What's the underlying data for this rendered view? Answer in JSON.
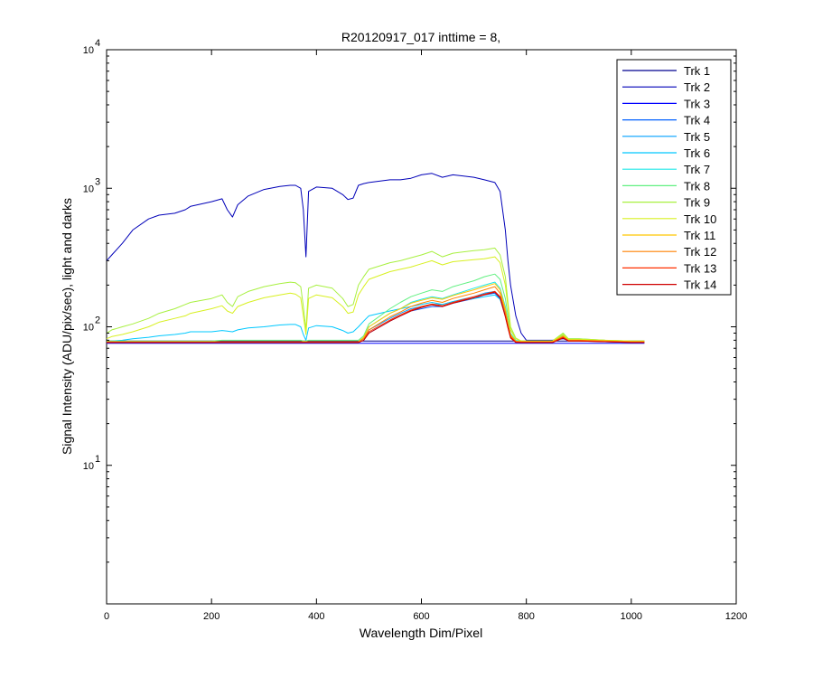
{
  "chart_data": {
    "type": "line",
    "title": "R20120917_017 inttime = 8,",
    "xlabel": "Wavelength Dim/Pixel",
    "ylabel": "Signal Intensity (ADU/pix/sec), light and darks",
    "xlim": [
      0,
      1200
    ],
    "ylim": [
      1,
      10000
    ],
    "yscale": "log",
    "grid": false,
    "legend_position": "top-right",
    "x_ticks": [
      "0",
      "200",
      "400",
      "600",
      "800",
      "1000",
      "1200"
    ],
    "y_ticks": [
      {
        "base": "10",
        "exp": "1"
      },
      {
        "base": "10",
        "exp": "2"
      },
      {
        "base": "10",
        "exp": "3"
      },
      {
        "base": "10",
        "exp": "4"
      }
    ],
    "x": [
      0,
      10,
      30,
      50,
      80,
      100,
      130,
      150,
      160,
      200,
      220,
      230,
      240,
      250,
      270,
      300,
      330,
      350,
      360,
      370,
      375,
      380,
      385,
      400,
      430,
      450,
      460,
      470,
      480,
      490,
      500,
      540,
      560,
      580,
      600,
      620,
      640,
      660,
      700,
      720,
      740,
      750,
      760,
      765,
      770,
      780,
      790,
      800,
      850,
      870,
      880,
      900,
      950,
      1000,
      1025
    ],
    "series": [
      {
        "name": "Trk 1",
        "color": "#00008f",
        "values": [
          79,
          79,
          79,
          79,
          79,
          79,
          79,
          79,
          79,
          79,
          79,
          79,
          79,
          79,
          79,
          79,
          79,
          79,
          79,
          79,
          79,
          79,
          79,
          79,
          79,
          79,
          79,
          79,
          79,
          79,
          79,
          79,
          79,
          79,
          79,
          79,
          79,
          79,
          79,
          79,
          79,
          79,
          79,
          79,
          79,
          79,
          79,
          79,
          79,
          79,
          79,
          79,
          79,
          79,
          79
        ]
      },
      {
        "name": "Trk 2",
        "color": "#0000b8",
        "values": [
          300,
          330,
          400,
          500,
          600,
          640,
          660,
          700,
          740,
          800,
          840,
          700,
          620,
          760,
          880,
          980,
          1030,
          1050,
          1050,
          1000,
          700,
          320,
          950,
          1020,
          1000,
          900,
          830,
          850,
          1050,
          1080,
          1100,
          1150,
          1150,
          1180,
          1250,
          1280,
          1200,
          1250,
          1200,
          1150,
          1100,
          950,
          500,
          300,
          200,
          120,
          90,
          80,
          80,
          82,
          80,
          80,
          79,
          79,
          79
        ]
      },
      {
        "name": "Trk 3",
        "color": "#0000ff",
        "values": [
          76,
          76,
          76,
          76,
          76,
          76,
          76,
          76,
          76,
          76,
          76,
          76,
          76,
          76,
          76,
          76,
          76,
          76,
          76,
          76,
          76,
          76,
          76,
          76,
          76,
          76,
          76,
          76,
          76,
          76,
          76,
          76,
          76,
          76,
          76,
          76,
          76,
          76,
          76,
          76,
          76,
          76,
          76,
          76,
          76,
          76,
          76,
          76,
          76,
          76,
          76,
          76,
          76,
          76,
          76
        ]
      },
      {
        "name": "Trk 4",
        "color": "#0060ff",
        "values": [
          77,
          77,
          77,
          77,
          77,
          77,
          77,
          77,
          77,
          77,
          77,
          77,
          77,
          77,
          77,
          77,
          77,
          77,
          77,
          77,
          77,
          77,
          77,
          77,
          77,
          77,
          77,
          77,
          77,
          80,
          90,
          110,
          120,
          130,
          135,
          140,
          140,
          148,
          160,
          170,
          175,
          160,
          120,
          100,
          85,
          78,
          77,
          77,
          77,
          85,
          80,
          80,
          78,
          77,
          77
        ]
      },
      {
        "name": "Trk 5",
        "color": "#00a0ff",
        "values": [
          78,
          78,
          78,
          78,
          78,
          78,
          78,
          78,
          78,
          78,
          78,
          78,
          78,
          78,
          78,
          78,
          78,
          78,
          78,
          78,
          78,
          78,
          78,
          78,
          78,
          78,
          78,
          78,
          78,
          82,
          95,
          115,
          125,
          135,
          140,
          145,
          145,
          152,
          165,
          175,
          180,
          165,
          125,
          103,
          87,
          79,
          78,
          78,
          78,
          87,
          81,
          81,
          79,
          78,
          78
        ]
      },
      {
        "name": "Trk 6",
        "color": "#00c8ff",
        "values": [
          78,
          79,
          80,
          82,
          84,
          86,
          88,
          90,
          92,
          92,
          94,
          93,
          92,
          95,
          98,
          100,
          103,
          104,
          104,
          100,
          88,
          80,
          98,
          102,
          100,
          94,
          90,
          92,
          100,
          110,
          120,
          130,
          135,
          140,
          145,
          150,
          145,
          152,
          160,
          165,
          170,
          158,
          120,
          100,
          86,
          79,
          78,
          78,
          78,
          86,
          80,
          80,
          79,
          78,
          78
        ]
      },
      {
        "name": "Trk 7",
        "color": "#20e8e8",
        "values": [
          78,
          78,
          78,
          78,
          78,
          78,
          78,
          78,
          78,
          78,
          78,
          78,
          78,
          78,
          78,
          78,
          78,
          78,
          78,
          78,
          78,
          78,
          78,
          78,
          78,
          78,
          78,
          78,
          78,
          84,
          100,
          125,
          135,
          150,
          158,
          165,
          160,
          170,
          190,
          200,
          210,
          190,
          140,
          110,
          90,
          80,
          78,
          78,
          78,
          88,
          81,
          81,
          79,
          78,
          78
        ]
      },
      {
        "name": "Trk 8",
        "color": "#60f080",
        "values": [
          79,
          79,
          79,
          79,
          79,
          79,
          79,
          79,
          79,
          79,
          80,
          80,
          80,
          80,
          80,
          80,
          80,
          80,
          80,
          80,
          79,
          79,
          80,
          80,
          80,
          80,
          80,
          80,
          80,
          86,
          105,
          135,
          150,
          165,
          175,
          185,
          180,
          195,
          215,
          230,
          240,
          220,
          160,
          120,
          95,
          82,
          79,
          79,
          79,
          90,
          82,
          82,
          80,
          79,
          79
        ]
      },
      {
        "name": "Trk 9",
        "color": "#a8f040",
        "values": [
          90,
          95,
          100,
          105,
          115,
          125,
          135,
          145,
          150,
          160,
          170,
          150,
          140,
          165,
          180,
          195,
          205,
          210,
          208,
          195,
          140,
          95,
          190,
          200,
          190,
          160,
          140,
          145,
          200,
          230,
          260,
          290,
          300,
          315,
          330,
          350,
          320,
          340,
          355,
          360,
          370,
          330,
          230,
          150,
          100,
          83,
          79,
          79,
          79,
          90,
          82,
          82,
          80,
          79,
          79
        ]
      },
      {
        "name": "Trk 10",
        "color": "#d8f020",
        "values": [
          82,
          85,
          88,
          92,
          100,
          108,
          115,
          120,
          125,
          135,
          142,
          130,
          125,
          140,
          150,
          162,
          170,
          175,
          172,
          162,
          120,
          88,
          160,
          170,
          162,
          140,
          125,
          128,
          170,
          195,
          220,
          250,
          260,
          270,
          285,
          300,
          280,
          295,
          305,
          310,
          320,
          290,
          200,
          140,
          95,
          82,
          79,
          79,
          79,
          88,
          81,
          81,
          80,
          79,
          79
        ]
      },
      {
        "name": "Trk 11",
        "color": "#ffc800",
        "values": [
          78,
          78,
          78,
          78,
          78,
          78,
          78,
          78,
          78,
          78,
          78,
          78,
          78,
          78,
          78,
          78,
          78,
          78,
          78,
          78,
          78,
          78,
          78,
          78,
          78,
          78,
          78,
          78,
          78,
          84,
          100,
          125,
          135,
          148,
          155,
          162,
          158,
          168,
          185,
          195,
          205,
          185,
          135,
          108,
          88,
          79,
          78,
          78,
          78,
          86,
          80,
          80,
          79,
          78,
          78
        ]
      },
      {
        "name": "Trk 12",
        "color": "#ff8000",
        "values": [
          78,
          78,
          78,
          78,
          78,
          78,
          78,
          78,
          78,
          78,
          78,
          78,
          78,
          78,
          78,
          78,
          78,
          78,
          78,
          78,
          78,
          78,
          78,
          78,
          78,
          78,
          78,
          78,
          78,
          82,
          95,
          118,
          128,
          140,
          148,
          155,
          150,
          160,
          175,
          185,
          195,
          175,
          128,
          104,
          86,
          78,
          78,
          78,
          78,
          85,
          80,
          80,
          79,
          78,
          78
        ]
      },
      {
        "name": "Trk 13",
        "color": "#ff3000",
        "values": [
          77,
          77,
          77,
          77,
          77,
          77,
          77,
          77,
          77,
          77,
          77,
          77,
          77,
          77,
          77,
          77,
          77,
          77,
          77,
          77,
          77,
          77,
          77,
          77,
          77,
          77,
          77,
          77,
          77,
          80,
          92,
          112,
          122,
          132,
          140,
          146,
          142,
          150,
          165,
          172,
          180,
          165,
          120,
          100,
          84,
          78,
          77,
          77,
          77,
          84,
          79,
          79,
          78,
          77,
          77
        ]
      },
      {
        "name": "Trk 14",
        "color": "#d00000",
        "values": [
          77,
          77,
          77,
          77,
          77,
          77,
          77,
          77,
          77,
          77,
          77,
          77,
          77,
          77,
          77,
          77,
          77,
          77,
          77,
          77,
          77,
          77,
          77,
          77,
          77,
          77,
          77,
          77,
          77,
          80,
          90,
          110,
          120,
          130,
          138,
          144,
          140,
          148,
          162,
          170,
          178,
          162,
          118,
          98,
          83,
          77,
          77,
          77,
          77,
          83,
          79,
          79,
          78,
          77,
          77
        ]
      }
    ]
  }
}
